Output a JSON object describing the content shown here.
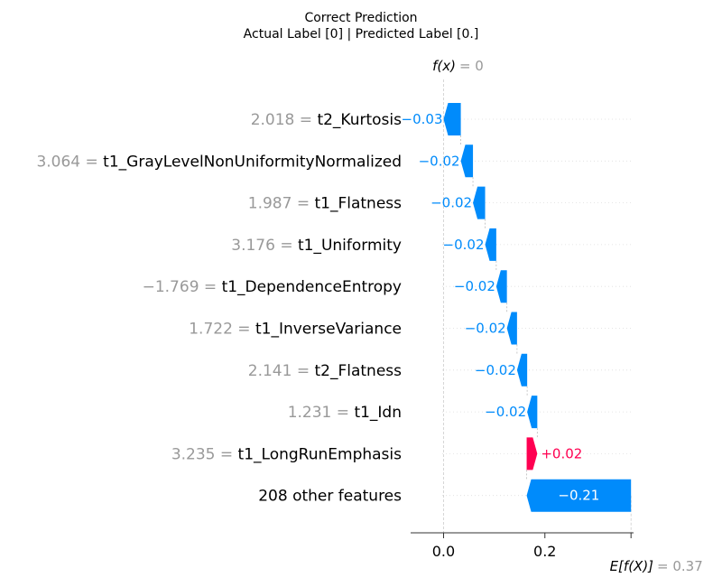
{
  "chart_data": {
    "type": "waterfall",
    "title_line1": "Correct Prediction",
    "title_line2": "Actual Label [0] | Predicted Label [0.]",
    "fx_label": "f(x)",
    "fx_value": "= 0",
    "efx_label": "E[f(X)]",
    "efx_value": "= 0.37",
    "base_value": 0.37,
    "output_value": 0.0,
    "xlim": [
      -0.065,
      0.375
    ],
    "xticks": [
      {
        "value": 0.0,
        "label": "0.0"
      },
      {
        "value": 0.2,
        "label": "0.2"
      }
    ],
    "features": [
      {
        "value_label": "2.018 =",
        "name": "t2_Kurtosis",
        "start": 0.034,
        "end": 0.0,
        "contribution_label": "−0.03"
      },
      {
        "value_label": "3.064 =",
        "name": "t1_GrayLevelNonUniformityNormalized",
        "start": 0.058,
        "end": 0.034,
        "contribution_label": "−0.02"
      },
      {
        "value_label": "1.987 =",
        "name": "t1_Flatness",
        "start": 0.082,
        "end": 0.058,
        "contribution_label": "−0.02"
      },
      {
        "value_label": "3.176 =",
        "name": "t1_Uniformity",
        "start": 0.104,
        "end": 0.082,
        "contribution_label": "−0.02"
      },
      {
        "value_label": "−1.769 =",
        "name": "t1_DependenceEntropy",
        "start": 0.125,
        "end": 0.104,
        "contribution_label": "−0.02"
      },
      {
        "value_label": "1.722 =",
        "name": "t1_InverseVariance",
        "start": 0.145,
        "end": 0.125,
        "contribution_label": "−0.02"
      },
      {
        "value_label": "2.141 =",
        "name": "t2_Flatness",
        "start": 0.165,
        "end": 0.145,
        "contribution_label": "−0.02"
      },
      {
        "value_label": "1.231 =",
        "name": "t1_Idn",
        "start": 0.185,
        "end": 0.165,
        "contribution_label": "−0.02"
      },
      {
        "value_label": "3.235 =",
        "name": "t1_LongRunEmphasis",
        "start": 0.164,
        "end": 0.185,
        "contribution_label": "+0.02"
      },
      {
        "value_label": "",
        "name": "208 other features",
        "start": 0.37,
        "end": 0.164,
        "contribution_label": "−0.21"
      }
    ],
    "colors": {
      "negative": "#008bfb",
      "positive": "#ff0051"
    }
  }
}
